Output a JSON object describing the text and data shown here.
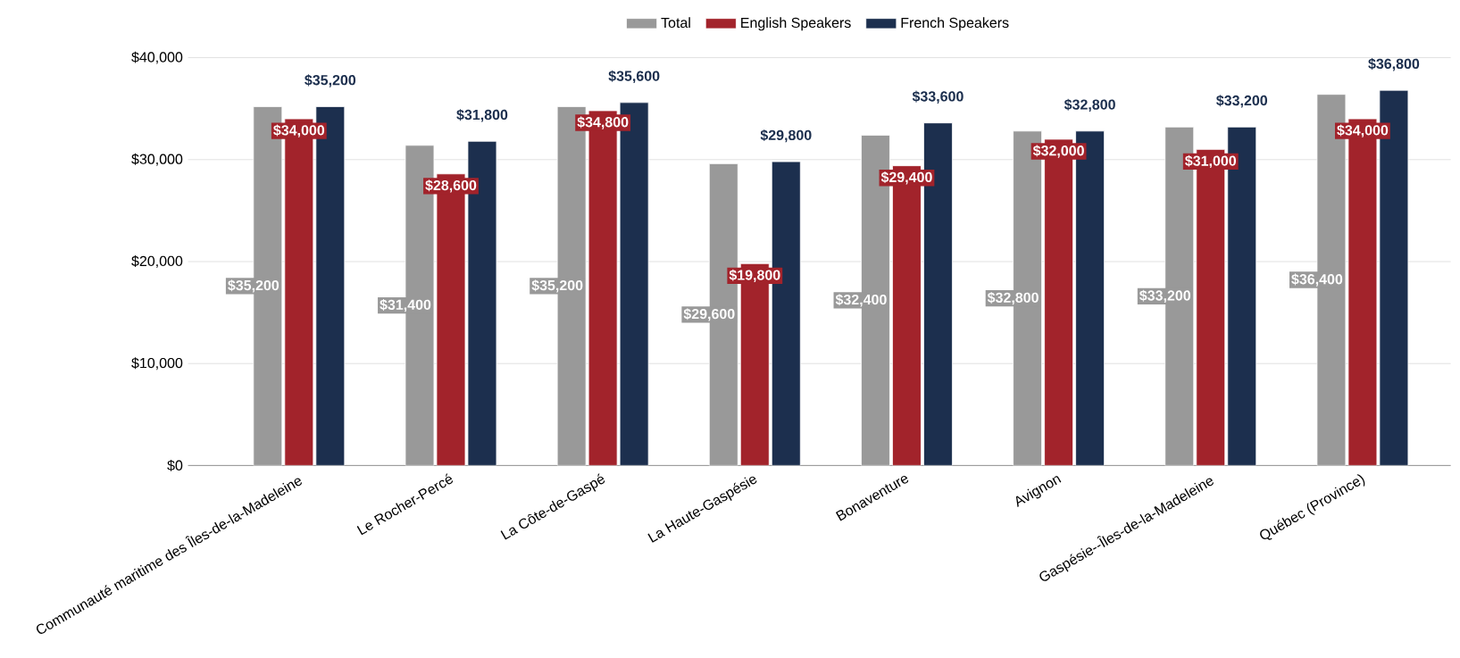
{
  "chart_data": {
    "type": "bar",
    "categories": [
      "Communauté maritime des Îles-de-la-Madeleine",
      "Le Rocher-Percé",
      "La Côte-de-Gaspé",
      "La Haute-Gaspésie",
      "Bonaventure",
      "Avignon",
      "Gaspésie--Îles-de-la-Madeleine",
      "Québec (Province)"
    ],
    "series": [
      {
        "name": "Total",
        "color": "#999999",
        "values": [
          35200,
          31400,
          35200,
          29600,
          32400,
          32800,
          33200,
          36400
        ],
        "value_labels": [
          "$35,200",
          "$31,400",
          "$35,200",
          "$29,600",
          "$32,400",
          "$32,800",
          "$33,200",
          "$36,400"
        ]
      },
      {
        "name": "English Speakers",
        "color": "#a2232b",
        "values": [
          34000,
          28600,
          34800,
          19800,
          29400,
          32000,
          31000,
          34000
        ],
        "value_labels": [
          "$34,000",
          "$28,600",
          "$34,800",
          "$19,800",
          "$29,400",
          "$32,000",
          "$31,000",
          "$34,000"
        ]
      },
      {
        "name": "French Speakers",
        "color": "#1c2f4e",
        "values": [
          35200,
          31800,
          35600,
          29800,
          33600,
          32800,
          33200,
          36800
        ],
        "value_labels": [
          "$35,200",
          "$31,800",
          "$35,600",
          "$29,800",
          "$33,600",
          "$32,800",
          "$33,200",
          "$36,800"
        ]
      }
    ],
    "ylim": [
      0,
      40000
    ],
    "yticks": [
      {
        "value": 0,
        "label": "$0"
      },
      {
        "value": 10000,
        "label": "$10,000"
      },
      {
        "value": 20000,
        "label": "$20,000"
      },
      {
        "value": 30000,
        "label": "$30,000"
      },
      {
        "value": 40000,
        "label": "$40,000"
      }
    ],
    "grid": "y",
    "legend": "top"
  }
}
